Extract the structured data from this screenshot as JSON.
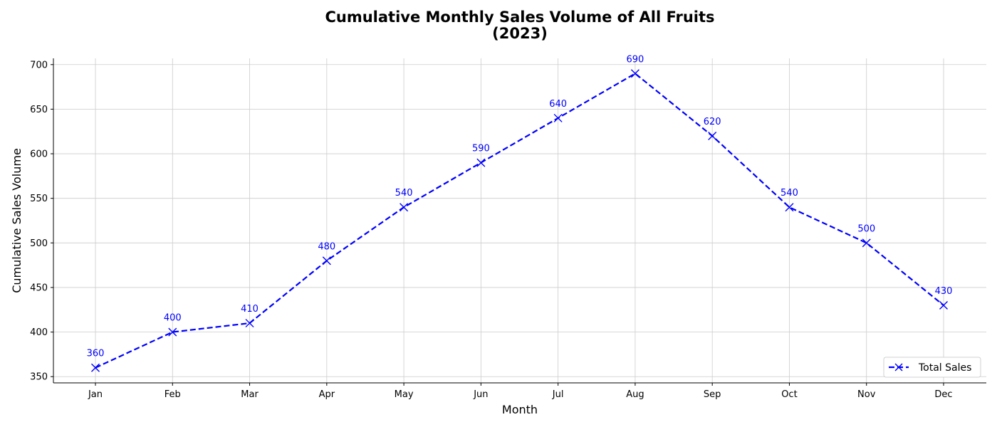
{
  "chart_data": {
    "type": "line",
    "title": "Cumulative Monthly Sales Volume of All Fruits",
    "subtitle": "(2023)",
    "xlabel": "Month",
    "ylabel": "Cumulative Sales Volume",
    "categories": [
      "Jan",
      "Feb",
      "Mar",
      "Apr",
      "May",
      "Jun",
      "Jul",
      "Aug",
      "Sep",
      "Oct",
      "Nov",
      "Dec"
    ],
    "series": [
      {
        "name": "Total Sales",
        "values": [
          360,
          400,
          410,
          480,
          540,
          590,
          640,
          690,
          620,
          540,
          500,
          430
        ],
        "color": "#0000ff",
        "line_style": "dashed",
        "marker": "x"
      }
    ],
    "ylim": [
      343,
      707
    ],
    "yticks": [
      350,
      400,
      450,
      500,
      550,
      600,
      650,
      700
    ],
    "grid": true,
    "data_labels": true,
    "legend_position": "lower-right"
  }
}
